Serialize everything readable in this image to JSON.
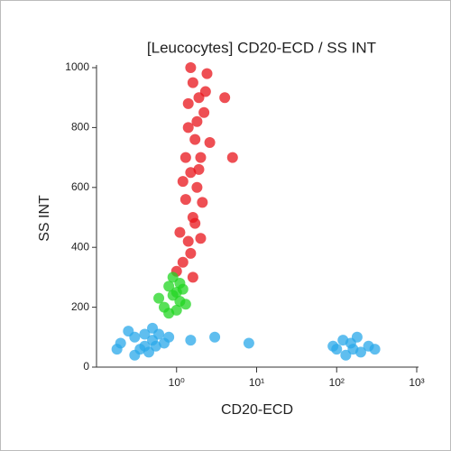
{
  "chart_data": {
    "type": "scatter",
    "title": "[Leucocytes] CD20-ECD / SS INT",
    "xlabel": "CD20-ECD",
    "ylabel": "SS INT",
    "xscale": "log",
    "xlim": [
      0.1,
      1000
    ],
    "xticks": [
      {
        "value": 1,
        "label": "10⁰"
      },
      {
        "value": 10,
        "label": "10¹"
      },
      {
        "value": 100,
        "label": "10²"
      },
      {
        "value": 1000,
        "label": "10³"
      }
    ],
    "ylim": [
      0,
      1000
    ],
    "yticks": [
      0,
      200,
      400,
      600,
      800,
      1000
    ],
    "series": [
      {
        "color": "#e8141b",
        "x": [
          1.2,
          1.4,
          1.6,
          1.3,
          1.8,
          1.5,
          2.0,
          1.7,
          1.4,
          2.2,
          1.9,
          1.6,
          2.4,
          1.1,
          1.5,
          2.1,
          1.3,
          1.8,
          2.6,
          1.2,
          1.7,
          1.0,
          2.3,
          1.5,
          1.9,
          4,
          5,
          1.6,
          1.4,
          2.0
        ],
        "values": [
          350,
          420,
          500,
          560,
          600,
          650,
          700,
          760,
          800,
          850,
          900,
          950,
          980,
          450,
          380,
          550,
          700,
          820,
          750,
          620,
          480,
          320,
          920,
          1000,
          660,
          900,
          700,
          300,
          880,
          430
        ]
      },
      {
        "color": "#22d622",
        "x": [
          0.7,
          0.9,
          1.1,
          0.8,
          1.2,
          1.0,
          0.6,
          1.3,
          0.9,
          1.1,
          0.8,
          1.0
        ],
        "values": [
          200,
          240,
          220,
          270,
          260,
          190,
          230,
          210,
          300,
          280,
          180,
          250
        ]
      },
      {
        "color": "#2aa8ea",
        "x": [
          0.2,
          0.3,
          0.4,
          0.5,
          0.35,
          0.6,
          0.25,
          0.45,
          0.7,
          0.3,
          0.55,
          0.8,
          0.4,
          0.18,
          1.5,
          3,
          8,
          0.5,
          100,
          150,
          200,
          130,
          250,
          180,
          90,
          300,
          120,
          160
        ],
        "values": [
          80,
          100,
          70,
          90,
          60,
          110,
          120,
          50,
          80,
          40,
          70,
          100,
          110,
          60,
          90,
          100,
          80,
          130,
          60,
          80,
          50,
          40,
          70,
          100,
          70,
          60,
          90,
          60
        ]
      }
    ]
  }
}
